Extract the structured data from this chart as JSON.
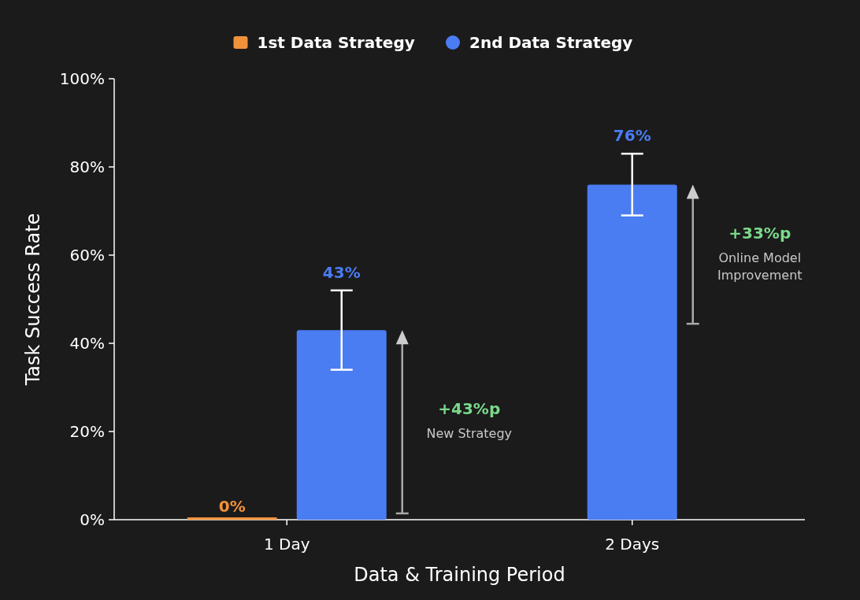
{
  "chart_data": {
    "type": "bar",
    "xlabel": "Data & Training Period",
    "ylabel": "Task Success Rate",
    "categories": [
      "1 Day",
      "2 Days"
    ],
    "series": [
      {
        "name": "1st Data Strategy",
        "color": "#f0923a",
        "values": [
          0,
          null
        ],
        "value_labels": [
          "0%",
          null
        ]
      },
      {
        "name": "2nd Data Strategy",
        "color": "#4a7cf2",
        "values": [
          43,
          76
        ],
        "value_labels": [
          "43%",
          "76%"
        ],
        "errors": [
          [
            34,
            52
          ],
          [
            69,
            83
          ]
        ]
      }
    ],
    "ylim": [
      0,
      100
    ],
    "yticks": [
      {
        "value": 0,
        "label": "0%"
      },
      {
        "value": 20,
        "label": "20%"
      },
      {
        "value": 40,
        "label": "40%"
      },
      {
        "value": 60,
        "label": "60%"
      },
      {
        "value": 80,
        "label": "80%"
      },
      {
        "value": 100,
        "label": "100%"
      }
    ],
    "grid": false,
    "legend": "top",
    "annotations": [
      "+43%p\nNew Strategy",
      "+33%p\nOnline Model\nImprovement"
    ]
  }
}
